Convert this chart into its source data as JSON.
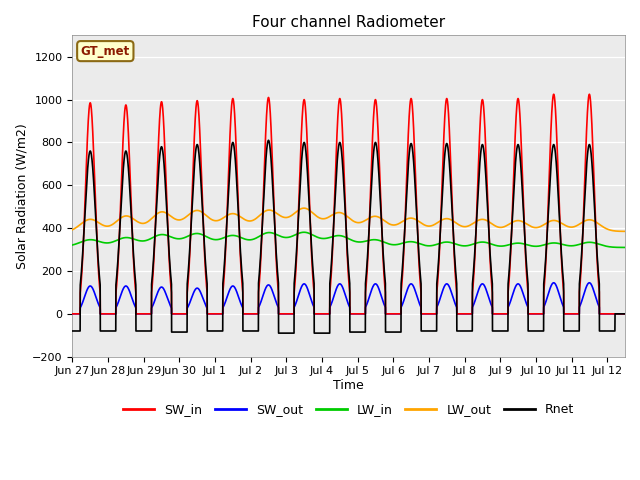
{
  "title": "Four channel Radiometer",
  "xlabel": "Time",
  "ylabel": "Solar Radiation (W/m2)",
  "ylim": [
    -200,
    1300
  ],
  "yticks": [
    -200,
    0,
    200,
    400,
    600,
    800,
    1000,
    1200
  ],
  "annotation_label": "GT_met",
  "annotation_color": "#8B1A00",
  "annotation_bg": "#FFFFCC",
  "annotation_edge": "#8B6914",
  "series": {
    "SW_in": {
      "color": "#FF0000",
      "lw": 1.2
    },
    "SW_out": {
      "color": "#0000FF",
      "lw": 1.2
    },
    "LW_in": {
      "color": "#00CC00",
      "lw": 1.2
    },
    "LW_out": {
      "color": "#FFA500",
      "lw": 1.2
    },
    "Rnet": {
      "color": "#000000",
      "lw": 1.2
    }
  },
  "x_tick_labels": [
    "Jun 27",
    "Jun 28",
    "Jun 29",
    "Jun 30",
    "Jul 1",
    "Jul 2",
    "Jul 3",
    "Jul 4",
    "Jul 5",
    "Jul 6",
    "Jul 7",
    "Jul 8",
    "Jul 9",
    "Jul 10",
    "Jul 11",
    "Jul 12"
  ],
  "x_tick_days": [
    0,
    1,
    2,
    3,
    4,
    5,
    6,
    7,
    8,
    9,
    10,
    11,
    12,
    13,
    14,
    15
  ],
  "num_days": 15,
  "xlim": [
    0,
    15.5
  ],
  "SW_in_peak": [
    985,
    975,
    990,
    995,
    1005,
    1010,
    1000,
    1005,
    1000,
    1005,
    1005,
    1000,
    1005,
    1025,
    1025
  ],
  "SW_out_peak": [
    130,
    130,
    125,
    120,
    130,
    135,
    140,
    140,
    140,
    140,
    140,
    140,
    140,
    145,
    145
  ],
  "LW_in_base": [
    315,
    320,
    330,
    340,
    320,
    335,
    345,
    330,
    315,
    305,
    305,
    305,
    305,
    305,
    310
  ],
  "LW_in_bump": [
    30,
    35,
    40,
    40,
    40,
    45,
    40,
    35,
    30,
    30,
    30,
    30,
    25,
    25,
    25
  ],
  "LW_out_base": [
    380,
    385,
    400,
    420,
    395,
    415,
    430,
    405,
    395,
    385,
    385,
    380,
    380,
    380,
    385
  ],
  "LW_out_bump": [
    60,
    70,
    75,
    70,
    65,
    70,
    70,
    65,
    60,
    60,
    60,
    60,
    55,
    55,
    55
  ],
  "Rnet_peak": [
    760,
    760,
    780,
    790,
    800,
    810,
    800,
    800,
    800,
    795,
    795,
    790,
    790,
    790,
    790
  ],
  "Rnet_night": [
    -80,
    -80,
    -85,
    -80,
    -80,
    -90,
    -90,
    -85,
    -85,
    -80,
    -80,
    -80,
    -80,
    -80,
    -80
  ],
  "day_start": 0.22,
  "day_end": 0.78,
  "sw_sigma": 0.13,
  "sw_out_sigma": 0.16,
  "rnet_sigma": 0.15,
  "lw_bump_sigma": 0.28
}
